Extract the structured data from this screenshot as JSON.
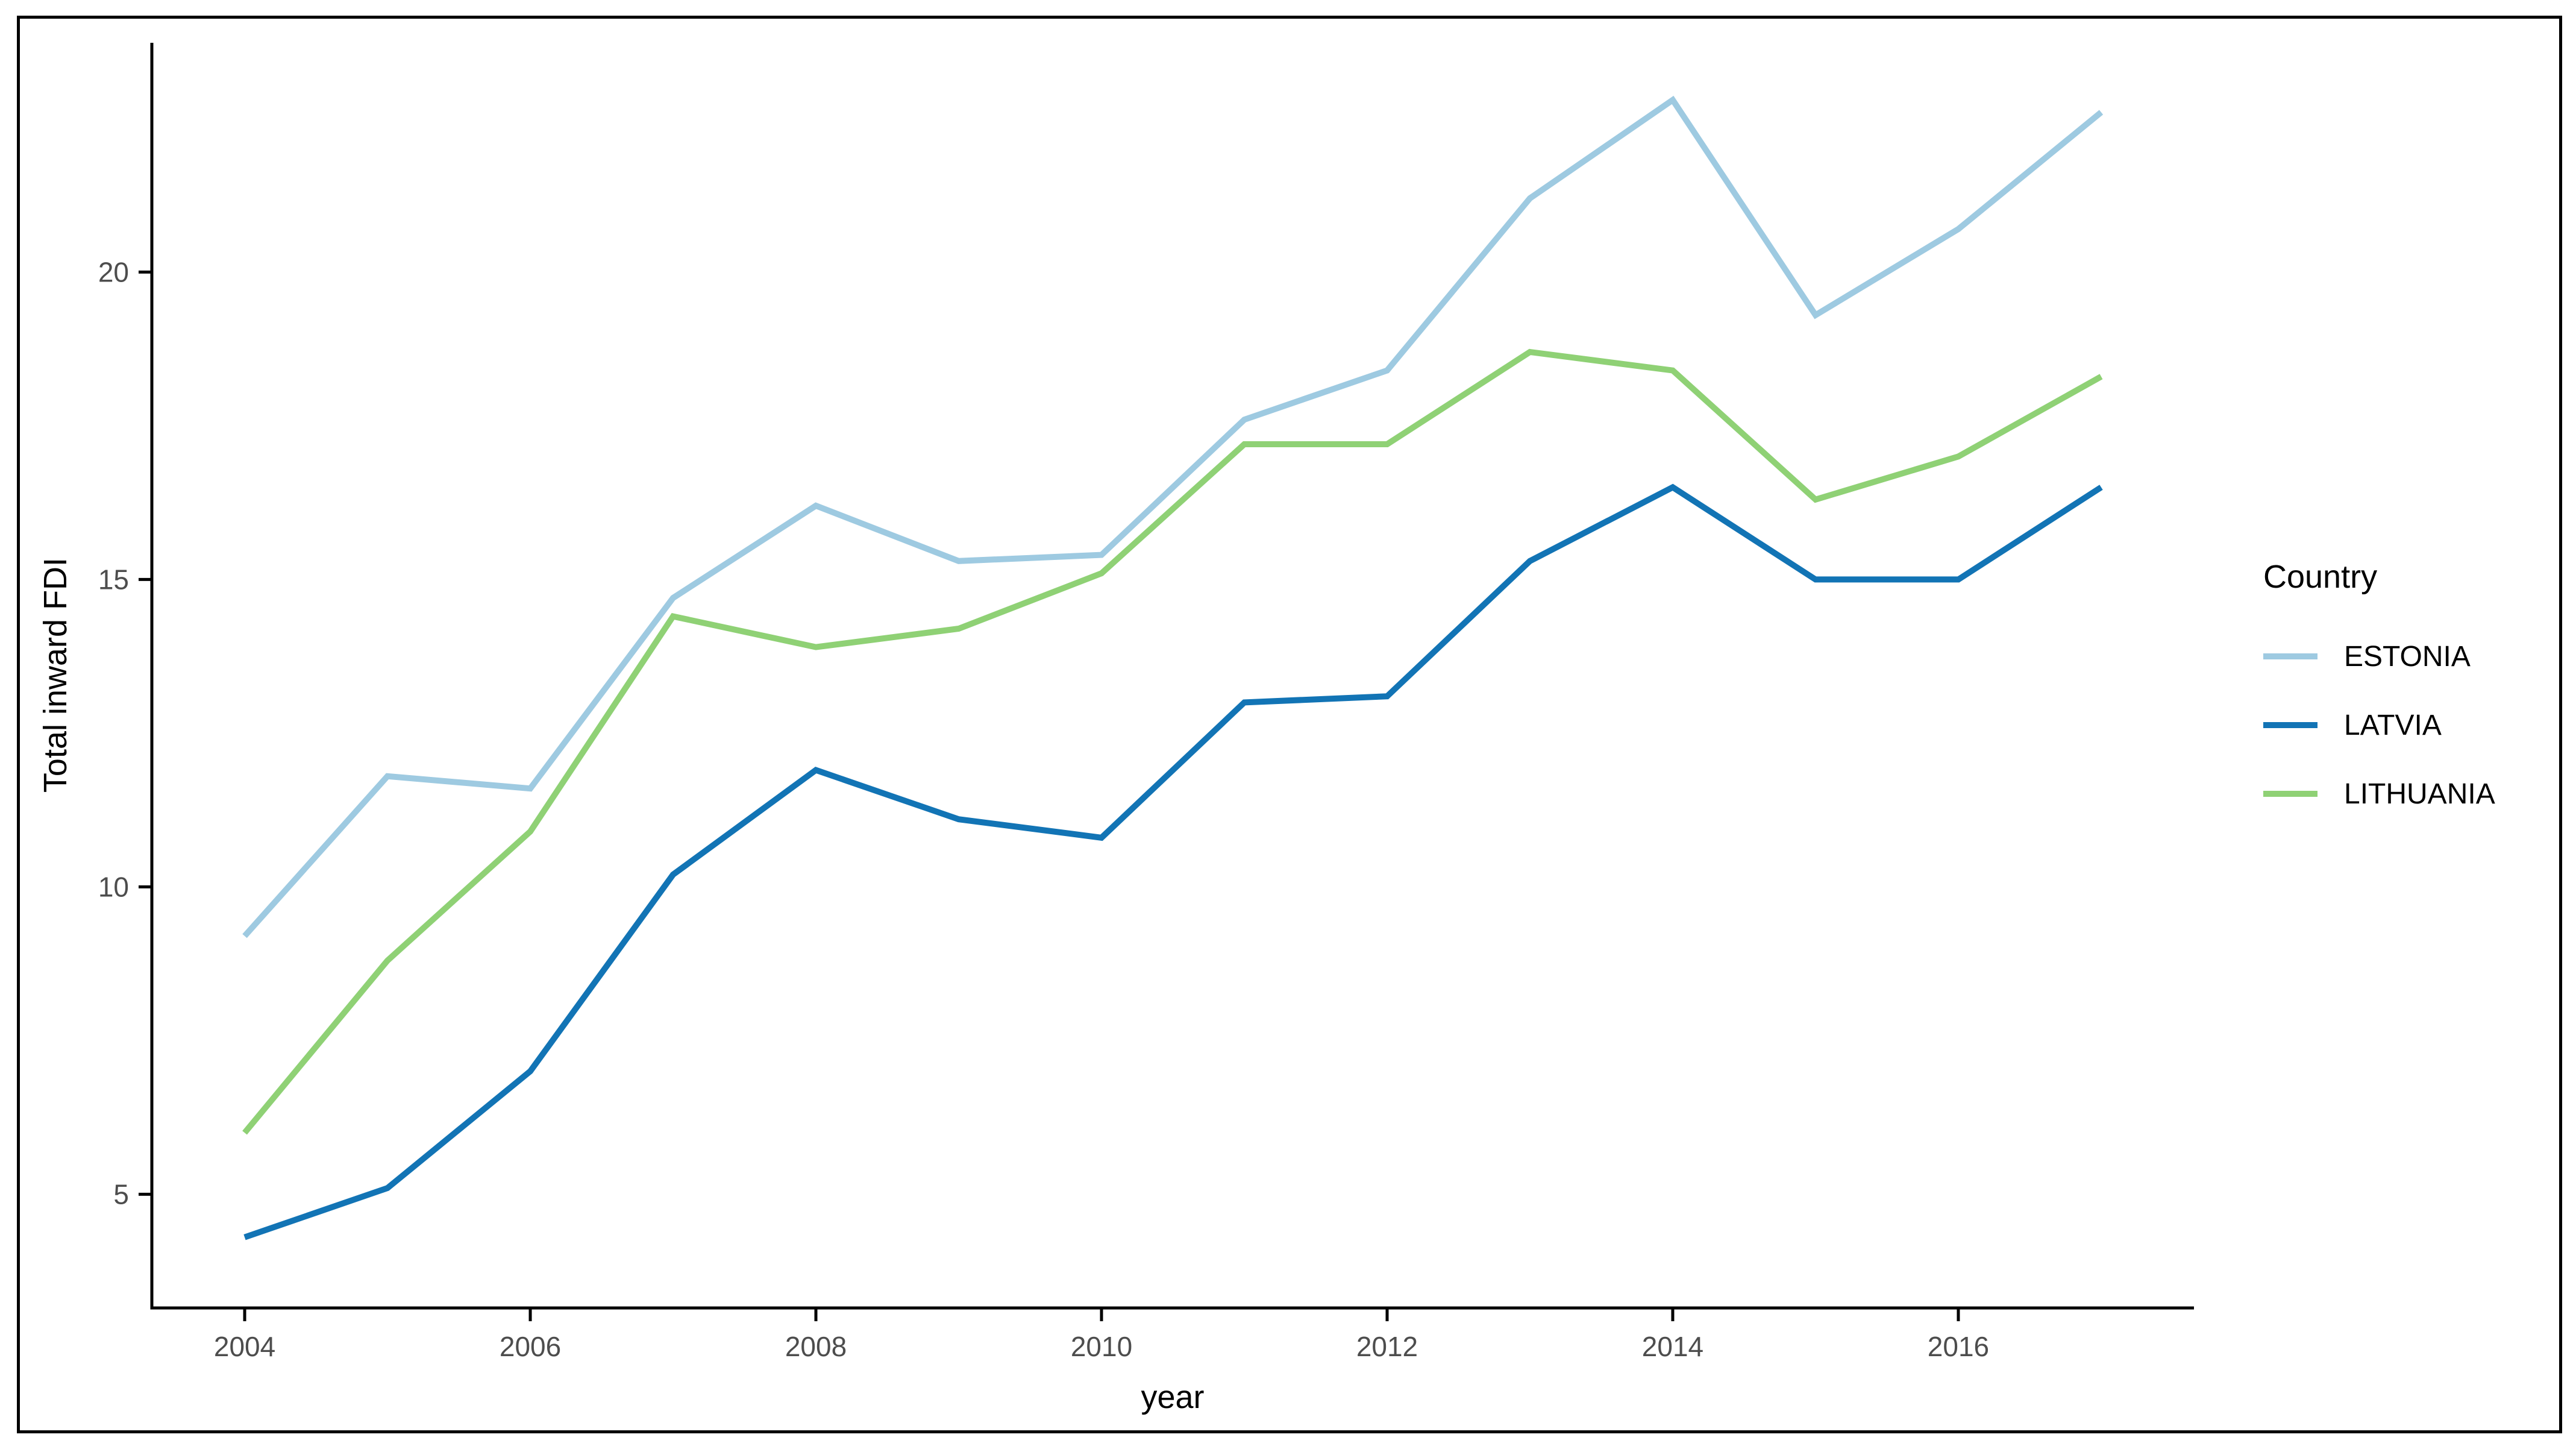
{
  "chart_data": {
    "type": "line",
    "title": "",
    "xlabel": "year",
    "ylabel": "Total inward FDI",
    "x": [
      2004,
      2005,
      2006,
      2007,
      2008,
      2009,
      2010,
      2011,
      2012,
      2013,
      2014,
      2015,
      2016,
      2017
    ],
    "series": [
      {
        "name": "ESTONIA",
        "color": "#9ECAE1",
        "values": [
          9.2,
          11.8,
          11.6,
          14.7,
          16.2,
          15.3,
          15.4,
          17.6,
          18.4,
          21.2,
          22.8,
          19.3,
          20.7,
          22.6
        ]
      },
      {
        "name": "LATVIA",
        "color": "#1274B5",
        "values": [
          4.3,
          5.1,
          7.0,
          10.2,
          11.9,
          11.1,
          10.8,
          13.0,
          13.1,
          15.3,
          16.5,
          15.0,
          15.0,
          16.5
        ]
      },
      {
        "name": "LITHUANIA",
        "color": "#8FD175",
        "values": [
          6.0,
          8.8,
          10.9,
          14.4,
          13.9,
          14.2,
          15.1,
          17.2,
          17.2,
          18.7,
          18.4,
          16.3,
          17.0,
          18.3
        ]
      }
    ],
    "x_ticks": [
      2004,
      2006,
      2008,
      2010,
      2012,
      2014,
      2016
    ],
    "y_ticks": [
      5,
      10,
      15,
      20
    ],
    "x_domain": [
      2003.35,
      2017.65
    ],
    "y_domain": [
      3.15,
      23.73
    ],
    "grid": false,
    "legend_position": "right"
  },
  "legend": {
    "title": "Country"
  },
  "colors": {
    "axis_line": "#000000",
    "tick_mark": "#000000",
    "tick_label": "#4D4D4D",
    "axis_title": "#000000",
    "background": "#FFFFFF",
    "frame_border": "#000000"
  }
}
